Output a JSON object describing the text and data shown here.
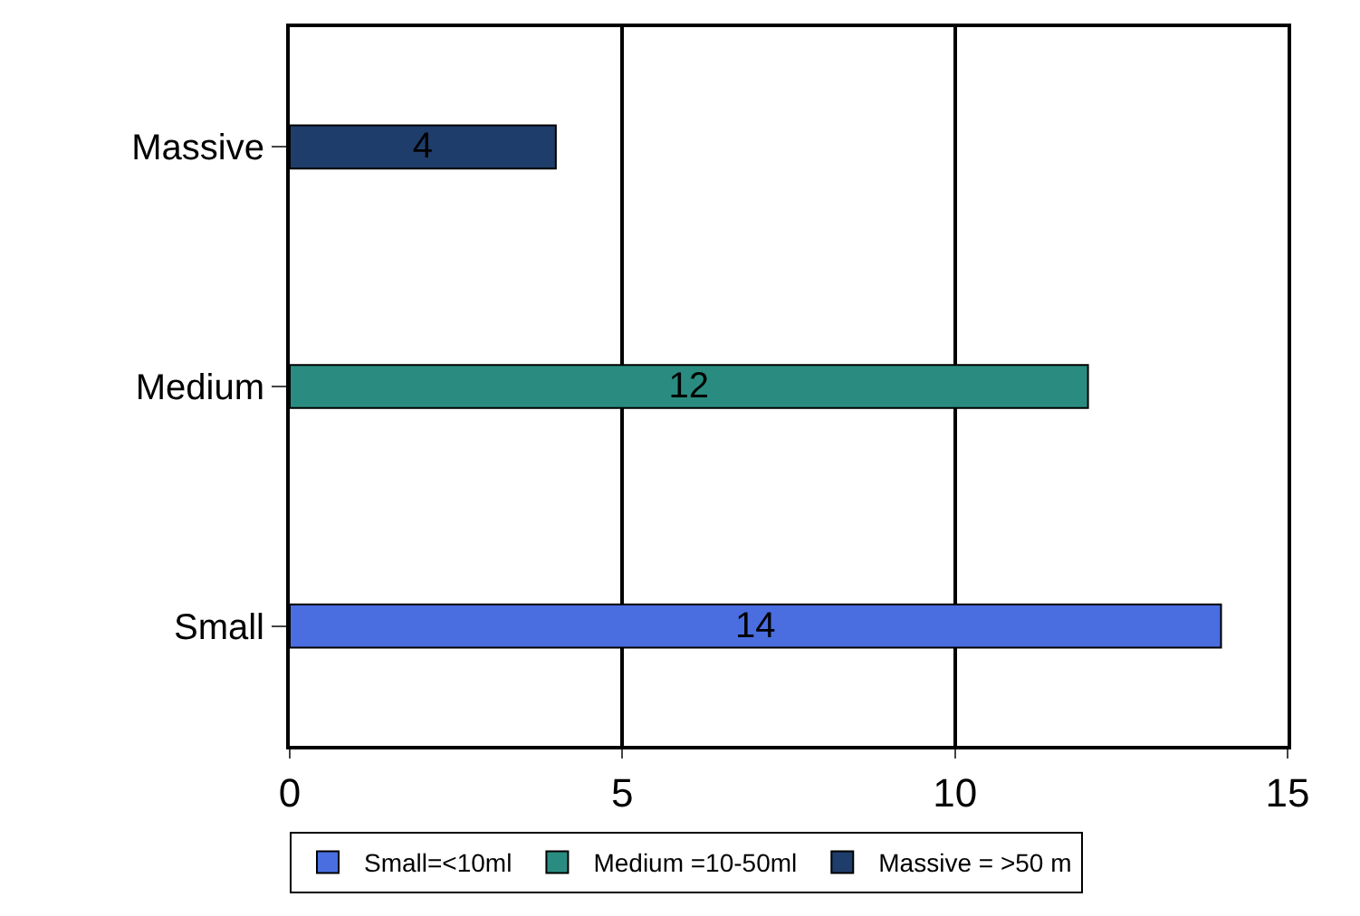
{
  "chart_data": {
    "type": "bar",
    "orientation": "horizontal",
    "categories": [
      "Massive",
      "Medium",
      "Small"
    ],
    "series": [
      {
        "name": "Small=<10ml",
        "color": "#4a6ee0",
        "values": [
          null,
          null,
          14
        ]
      },
      {
        "name": "Medium =10-50ml",
        "color": "#2a8c80",
        "values": [
          null,
          12,
          null
        ]
      },
      {
        "name": "Massive = >50 m",
        "color": "#1f3d6b",
        "values": [
          4,
          null,
          null
        ]
      }
    ],
    "xlim": [
      0,
      15
    ],
    "xticks": [
      0,
      5,
      10,
      15
    ],
    "grid": "x",
    "legend": "bottom",
    "data_labels": true
  }
}
